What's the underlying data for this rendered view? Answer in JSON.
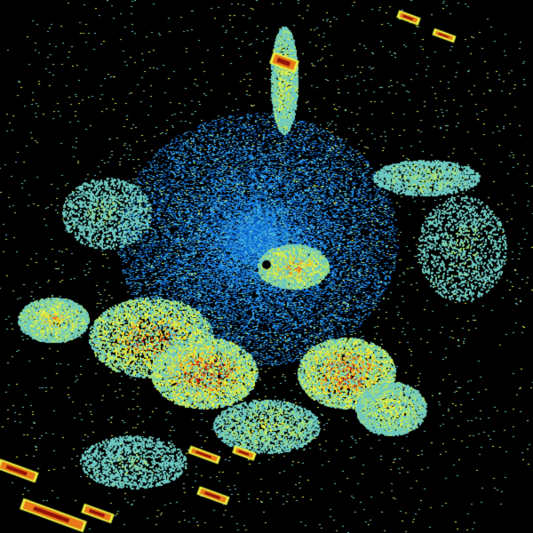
{
  "image": {
    "kind": "radar-reflectivity-ppi",
    "background": "#000000",
    "palette": [
      "#0a5fc8",
      "#1e8ee0",
      "#3aa8e8",
      "#6cc8c0",
      "#a8e070",
      "#e8f040",
      "#f0c020",
      "#e87818",
      "#c82810",
      "#901008"
    ]
  }
}
